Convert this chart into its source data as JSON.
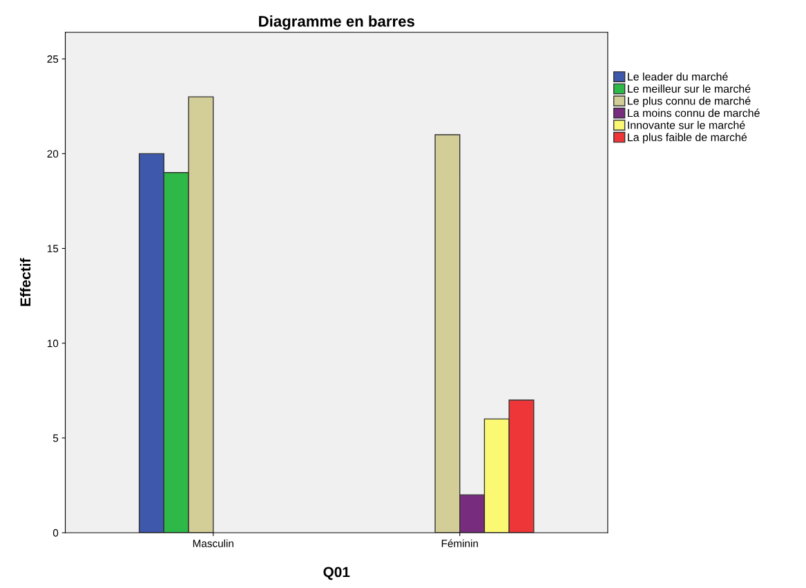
{
  "chart_data": {
    "type": "bar",
    "title": "Diagramme en barres",
    "xlabel": "Q01",
    "ylabel": "Effectif",
    "categories": [
      "Masculin",
      "Féminin"
    ],
    "series": [
      {
        "name": "Le leader du marché",
        "color": "#3e58ac",
        "values": [
          20,
          null
        ]
      },
      {
        "name": "Le meilleur sur le marché",
        "color": "#2eb848",
        "values": [
          19,
          null
        ]
      },
      {
        "name": "Le plus connu de marché",
        "color": "#d3ce97",
        "values": [
          23,
          21
        ]
      },
      {
        "name": "La moins connu de marché",
        "color": "#782c7e",
        "values": [
          null,
          2
        ]
      },
      {
        "name": "Innovante sur le marché",
        "color": "#fbf873",
        "values": [
          null,
          6
        ]
      },
      {
        "name": "La plus faible de marché",
        "color": "#ee3537",
        "values": [
          null,
          7
        ]
      }
    ],
    "ylim": [
      0,
      26.4
    ],
    "yticks": [
      0,
      5,
      10,
      15,
      20,
      25
    ],
    "grid": false,
    "legend": "top right"
  }
}
